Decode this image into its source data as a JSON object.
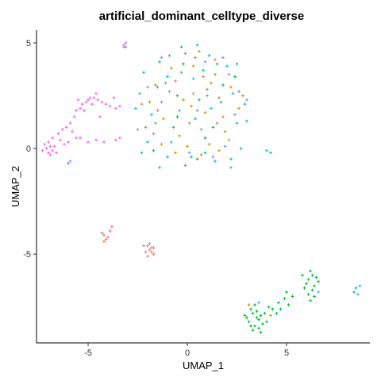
{
  "chart_data": {
    "type": "scatter",
    "title": "artificial_dominant_celltype_diverse",
    "xlabel": "UMAP_1",
    "ylabel": "UMAP_2",
    "xlim": [
      -7.6,
      9.2
    ],
    "ylim": [
      -9.2,
      5.6
    ],
    "xticks": [
      -5,
      0,
      5
    ],
    "yticks": [
      5,
      0,
      -5
    ],
    "grid": false,
    "legend": "none",
    "point_style": "cross",
    "series": [
      {
        "color": "#F8766D",
        "points": [
          [
            -4.2,
            -4.1
          ],
          [
            -4.0,
            -4.2
          ],
          [
            -4.1,
            -4.3
          ],
          [
            -4.3,
            -4.0
          ],
          [
            -3.9,
            -3.9
          ],
          [
            -3.8,
            -3.7
          ],
          [
            -4.2,
            -4.4
          ],
          [
            -2.0,
            -4.6
          ],
          [
            -1.9,
            -4.8
          ],
          [
            -1.8,
            -4.7
          ],
          [
            -2.1,
            -4.9
          ],
          [
            -1.7,
            -5.0
          ],
          [
            -2.2,
            -4.6
          ],
          [
            -1.9,
            -4.5
          ],
          [
            -1.8,
            -4.9
          ],
          [
            -2.0,
            -5.1
          ],
          [
            -1.7,
            -4.7
          ],
          [
            0.8,
            3.4
          ],
          [
            -1.5,
            1.8
          ],
          [
            1.8,
            1.5
          ],
          [
            0.3,
            2.6
          ],
          [
            -0.6,
            3.2
          ],
          [
            1.4,
            4.2
          ],
          [
            -2.3,
            2.1
          ],
          [
            2.1,
            0.4
          ]
        ]
      },
      {
        "color": "#B79F00",
        "points": [
          [
            -0.8,
            3.8
          ],
          [
            0.6,
            4.6
          ],
          [
            1.2,
            3.1
          ],
          [
            -1.9,
            2.2
          ],
          [
            0.1,
            1.2
          ],
          [
            1.6,
            2.4
          ],
          [
            -0.4,
            0.6
          ],
          [
            2.2,
            2.9
          ],
          [
            0.9,
            1.7
          ],
          [
            -1.2,
            1.4
          ],
          [
            0.3,
            3.9
          ],
          [
            1.9,
            0.8
          ],
          [
            -0.2,
            2.3
          ],
          [
            1.1,
            0.2
          ],
          [
            -1.6,
            3.0
          ],
          [
            0.7,
            -0.3
          ],
          [
            2.6,
            1.9
          ],
          [
            -0.9,
            2.7
          ],
          [
            1.4,
            3.5
          ],
          [
            0.0,
            0.1
          ],
          [
            -2.1,
            1.0
          ],
          [
            1.6,
            -0.1
          ],
          [
            0.4,
            4.3
          ],
          [
            -0.6,
            -0.2
          ],
          [
            2.8,
            2.5
          ],
          [
            0.2,
            2.0
          ],
          [
            1.0,
            2.8
          ],
          [
            -1.3,
            0.2
          ],
          [
            3.1,
            -7.4
          ],
          [
            4.2,
            -7.9
          ]
        ]
      },
      {
        "color": "#00BA38",
        "points": [
          [
            3.3,
            -7.8
          ],
          [
            3.5,
            -8.0
          ],
          [
            3.1,
            -8.2
          ],
          [
            3.7,
            -7.9
          ],
          [
            3.4,
            -8.4
          ],
          [
            3.6,
            -8.1
          ],
          [
            3.2,
            -7.6
          ],
          [
            3.8,
            -8.3
          ],
          [
            3.0,
            -8.0
          ],
          [
            3.5,
            -7.7
          ],
          [
            3.9,
            -7.8
          ],
          [
            4.1,
            -7.5
          ],
          [
            3.3,
            -8.6
          ],
          [
            3.6,
            -8.5
          ],
          [
            2.9,
            -7.9
          ],
          [
            4.0,
            -8.2
          ],
          [
            3.4,
            -7.4
          ],
          [
            3.7,
            -8.7
          ],
          [
            4.3,
            -7.6
          ],
          [
            3.2,
            -8.4
          ],
          [
            4.6,
            -7.3
          ],
          [
            4.9,
            -7.1
          ],
          [
            5.1,
            -7.4
          ],
          [
            4.7,
            -7.6
          ],
          [
            5.3,
            -7.0
          ],
          [
            4.5,
            -7.8
          ],
          [
            5.0,
            -6.8
          ],
          [
            6.1,
            -6.2
          ],
          [
            6.3,
            -6.0
          ],
          [
            6.0,
            -6.4
          ],
          [
            6.4,
            -6.5
          ],
          [
            6.2,
            -5.8
          ],
          [
            6.5,
            -6.1
          ],
          [
            6.3,
            -6.7
          ],
          [
            6.1,
            -6.9
          ],
          [
            5.9,
            -6.6
          ],
          [
            6.4,
            -7.0
          ],
          [
            6.6,
            -6.3
          ],
          [
            6.2,
            -7.2
          ],
          [
            5.8,
            -6.0
          ],
          [
            -0.5,
            1.5
          ],
          [
            1.3,
            1.0
          ],
          [
            0.5,
            -0.5
          ],
          [
            -1.7,
            -0.1
          ],
          [
            2.4,
            3.4
          ],
          [
            -0.2,
            4.0
          ],
          [
            1.8,
            3.0
          ],
          [
            0.9,
            0.5
          ]
        ]
      },
      {
        "color": "#00BFC4",
        "points": [
          [
            -0.3,
            4.8
          ],
          [
            0.5,
            4.9
          ],
          [
            -1.4,
            4.1
          ],
          [
            1.5,
            4.0
          ],
          [
            2.0,
            3.9
          ],
          [
            -2.2,
            3.6
          ],
          [
            2.5,
            4.0
          ],
          [
            -1.0,
            3.4
          ],
          [
            0.8,
            3.7
          ],
          [
            -2.4,
            2.6
          ],
          [
            2.9,
            2.1
          ],
          [
            -1.8,
            1.6
          ],
          [
            1.2,
            1.9
          ],
          [
            -0.7,
            1.0
          ],
          [
            2.5,
            1.2
          ],
          [
            -2.0,
            0.3
          ],
          [
            0.2,
            -0.4
          ],
          [
            1.4,
            -0.6
          ],
          [
            -1.0,
            -0.4
          ],
          [
            -0.1,
            -0.8
          ],
          [
            2.2,
            -0.5
          ],
          [
            -2.6,
            1.9
          ],
          [
            3.0,
            1.3
          ],
          [
            -1.4,
            -0.9
          ],
          [
            0.9,
            -0.2
          ],
          [
            1.7,
            2.2
          ],
          [
            -0.5,
            2.5
          ],
          [
            0.4,
            1.4
          ],
          [
            2.7,
            0.0
          ],
          [
            -2.3,
            -0.2
          ],
          [
            -0.9,
            4.4
          ],
          [
            1.1,
            4.4
          ],
          [
            0.6,
            2.3
          ],
          [
            -1.5,
            2.9
          ],
          [
            2.3,
            2.6
          ],
          [
            4.0,
            -0.1
          ],
          [
            4.2,
            -0.2
          ],
          [
            -6.0,
            -0.7
          ],
          [
            8.5,
            -6.6
          ],
          [
            8.7,
            -6.5
          ],
          [
            8.4,
            -6.8
          ]
        ]
      },
      {
        "color": "#619CFF",
        "points": [
          [
            -0.1,
            4.5
          ],
          [
            1.8,
            4.3
          ],
          [
            -1.1,
            3.1
          ],
          [
            0.3,
            3.3
          ],
          [
            2.1,
            3.5
          ],
          [
            -2.0,
            2.9
          ],
          [
            1.0,
            2.5
          ],
          [
            -0.4,
            1.8
          ],
          [
            2.4,
            1.6
          ],
          [
            -1.6,
            1.2
          ],
          [
            0.7,
            0.9
          ],
          [
            1.9,
            0.1
          ],
          [
            -0.8,
            0.3
          ],
          [
            0.1,
            -0.2
          ],
          [
            -2.5,
            0.9
          ],
          [
            2.6,
            2.7
          ],
          [
            1.5,
            1.2
          ],
          [
            -0.3,
            3.6
          ],
          [
            0.9,
            4.1
          ],
          [
            -1.3,
            2.2
          ],
          [
            3.0,
            2.3
          ],
          [
            2.2,
            -0.9
          ],
          [
            -1.7,
            0.7
          ],
          [
            0.5,
            1.8
          ],
          [
            1.3,
            -0.4
          ],
          [
            6.6,
            -6.8
          ],
          [
            3.6,
            -7.3
          ],
          [
            8.6,
            -6.9
          ],
          [
            -3.2,
            4.9
          ],
          [
            -3.1,
            4.8
          ]
        ]
      },
      {
        "color": "#F564E3",
        "points": [
          [
            -7.1,
            0.0
          ],
          [
            -6.9,
            0.1
          ],
          [
            -7.2,
            0.2
          ],
          [
            -6.8,
            -0.1
          ],
          [
            -7.0,
            -0.2
          ],
          [
            -6.9,
            -0.3
          ],
          [
            -7.3,
            -0.1
          ],
          [
            -6.7,
            0.1
          ],
          [
            -7.0,
            0.3
          ],
          [
            -6.6,
            -0.2
          ],
          [
            -6.8,
            0.5
          ],
          [
            -6.5,
            0.7
          ],
          [
            -6.3,
            0.9
          ],
          [
            -6.1,
            1.0
          ],
          [
            -6.4,
            0.4
          ],
          [
            -5.9,
            1.2
          ],
          [
            -5.7,
            1.5
          ],
          [
            -5.6,
            1.8
          ],
          [
            -5.4,
            1.9
          ],
          [
            -5.3,
            2.1
          ],
          [
            -5.1,
            2.2
          ],
          [
            -5.0,
            2.3
          ],
          [
            -4.9,
            2.4
          ],
          [
            -4.7,
            2.4
          ],
          [
            -4.5,
            2.3
          ],
          [
            -4.3,
            2.2
          ],
          [
            -4.1,
            2.1
          ],
          [
            -3.9,
            2.0
          ],
          [
            -3.6,
            1.9
          ],
          [
            -3.4,
            2.0
          ],
          [
            -5.5,
            2.3
          ],
          [
            -4.8,
            2.1
          ],
          [
            -4.6,
            2.6
          ],
          [
            -5.2,
            1.8
          ],
          [
            -6.2,
            0.2
          ],
          [
            -6.0,
            0.3
          ],
          [
            -5.8,
            0.8
          ],
          [
            -5.4,
            0.5
          ],
          [
            -5.0,
            0.3
          ],
          [
            -4.6,
            0.4
          ],
          [
            -4.2,
            0.3
          ],
          [
            -3.7,
            2.4
          ],
          [
            -4.4,
            1.5
          ],
          [
            -5.6,
            0.5
          ],
          [
            -3.2,
            4.8
          ],
          [
            -3.1,
            5.0
          ],
          [
            -1.3,
            4.3
          ],
          [
            -3.6,
            0.4
          ],
          [
            -3.4,
            0.5
          ],
          [
            -5.9,
            -0.6
          ]
        ]
      }
    ]
  }
}
